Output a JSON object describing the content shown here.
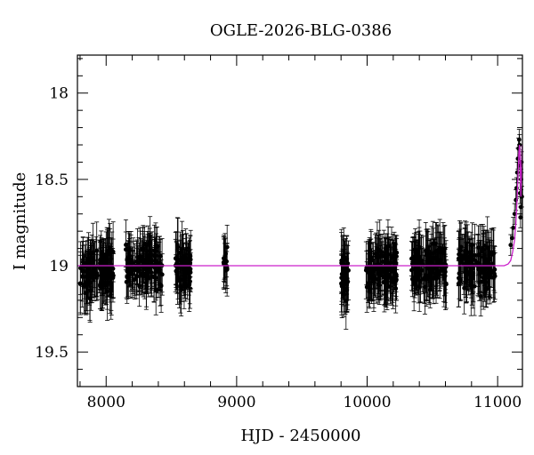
{
  "chart_data": {
    "type": "scatter",
    "title": "OGLE-2026-BLG-0386",
    "xlabel": "HJD - 2450000",
    "ylabel": "I magnitude",
    "xlim": [
      7780,
      11190
    ],
    "ylim": [
      19.7,
      17.78
    ],
    "y_inverted": true,
    "x_ticks": [
      8000,
      9000,
      10000,
      11000
    ],
    "x_tick_labels": [
      "8000",
      "9000",
      "10000",
      "11000"
    ],
    "y_ticks": [
      18,
      18.5,
      19,
      19.5
    ],
    "y_tick_labels": [
      "18",
      "18.5",
      "19",
      "19.5"
    ],
    "grid": false,
    "colors": {
      "points": "#000000",
      "model": "#cc22cc"
    },
    "observing_seasons": [
      {
        "x_start": 7800,
        "x_end": 8060,
        "mag_mean": 19.03,
        "mag_scatter": 0.09,
        "error_bar": 0.14,
        "points": 120
      },
      {
        "x_start": 8150,
        "x_end": 8430,
        "mag_mean": 19.0,
        "mag_scatter": 0.08,
        "error_bar": 0.13,
        "points": 130
      },
      {
        "x_start": 8530,
        "x_end": 8650,
        "mag_mean": 19.02,
        "mag_scatter": 0.08,
        "error_bar": 0.13,
        "points": 70
      },
      {
        "x_start": 8900,
        "x_end": 8930,
        "mag_mean": 18.99,
        "mag_scatter": 0.06,
        "error_bar": 0.12,
        "points": 15
      },
      {
        "x_start": 9800,
        "x_end": 9860,
        "mag_mean": 19.05,
        "mag_scatter": 0.09,
        "error_bar": 0.14,
        "points": 35
      },
      {
        "x_start": 9990,
        "x_end": 10230,
        "mag_mean": 19.01,
        "mag_scatter": 0.08,
        "error_bar": 0.14,
        "points": 120
      },
      {
        "x_start": 10340,
        "x_end": 10610,
        "mag_mean": 19.0,
        "mag_scatter": 0.08,
        "error_bar": 0.13,
        "points": 120
      },
      {
        "x_start": 10700,
        "x_end": 10980,
        "mag_mean": 19.01,
        "mag_scatter": 0.08,
        "error_bar": 0.14,
        "points": 130
      }
    ],
    "rise_points": [
      {
        "x": 11100,
        "y": 18.88
      },
      {
        "x": 11110,
        "y": 18.84
      },
      {
        "x": 11120,
        "y": 18.78
      },
      {
        "x": 11130,
        "y": 18.7
      },
      {
        "x": 11140,
        "y": 18.62
      },
      {
        "x": 11145,
        "y": 18.55
      },
      {
        "x": 11150,
        "y": 18.46
      },
      {
        "x": 11155,
        "y": 18.38
      },
      {
        "x": 11160,
        "y": 18.32
      },
      {
        "x": 11165,
        "y": 18.27
      },
      {
        "x": 11168,
        "y": 18.3
      },
      {
        "x": 11170,
        "y": 18.42
      },
      {
        "x": 11172,
        "y": 18.58
      },
      {
        "x": 11175,
        "y": 18.72
      },
      {
        "x": 11178,
        "y": 18.66
      },
      {
        "x": 11180,
        "y": 18.5
      },
      {
        "x": 11183,
        "y": 18.4
      },
      {
        "x": 11186,
        "y": 18.6
      }
    ],
    "model_curve": [
      {
        "x": 7780,
        "y": 19.0
      },
      {
        "x": 11050,
        "y": 19.0
      },
      {
        "x": 11080,
        "y": 18.99
      },
      {
        "x": 11100,
        "y": 18.97
      },
      {
        "x": 11115,
        "y": 18.92
      },
      {
        "x": 11130,
        "y": 18.85
      },
      {
        "x": 11140,
        "y": 18.75
      },
      {
        "x": 11150,
        "y": 18.6
      },
      {
        "x": 11158,
        "y": 18.45
      },
      {
        "x": 11163,
        "y": 18.35
      },
      {
        "x": 11167,
        "y": 18.3
      },
      {
        "x": 11170,
        "y": 18.33
      },
      {
        "x": 11174,
        "y": 18.45
      },
      {
        "x": 11178,
        "y": 18.6
      },
      {
        "x": 11183,
        "y": 18.45
      },
      {
        "x": 11188,
        "y": 18.3
      }
    ]
  }
}
